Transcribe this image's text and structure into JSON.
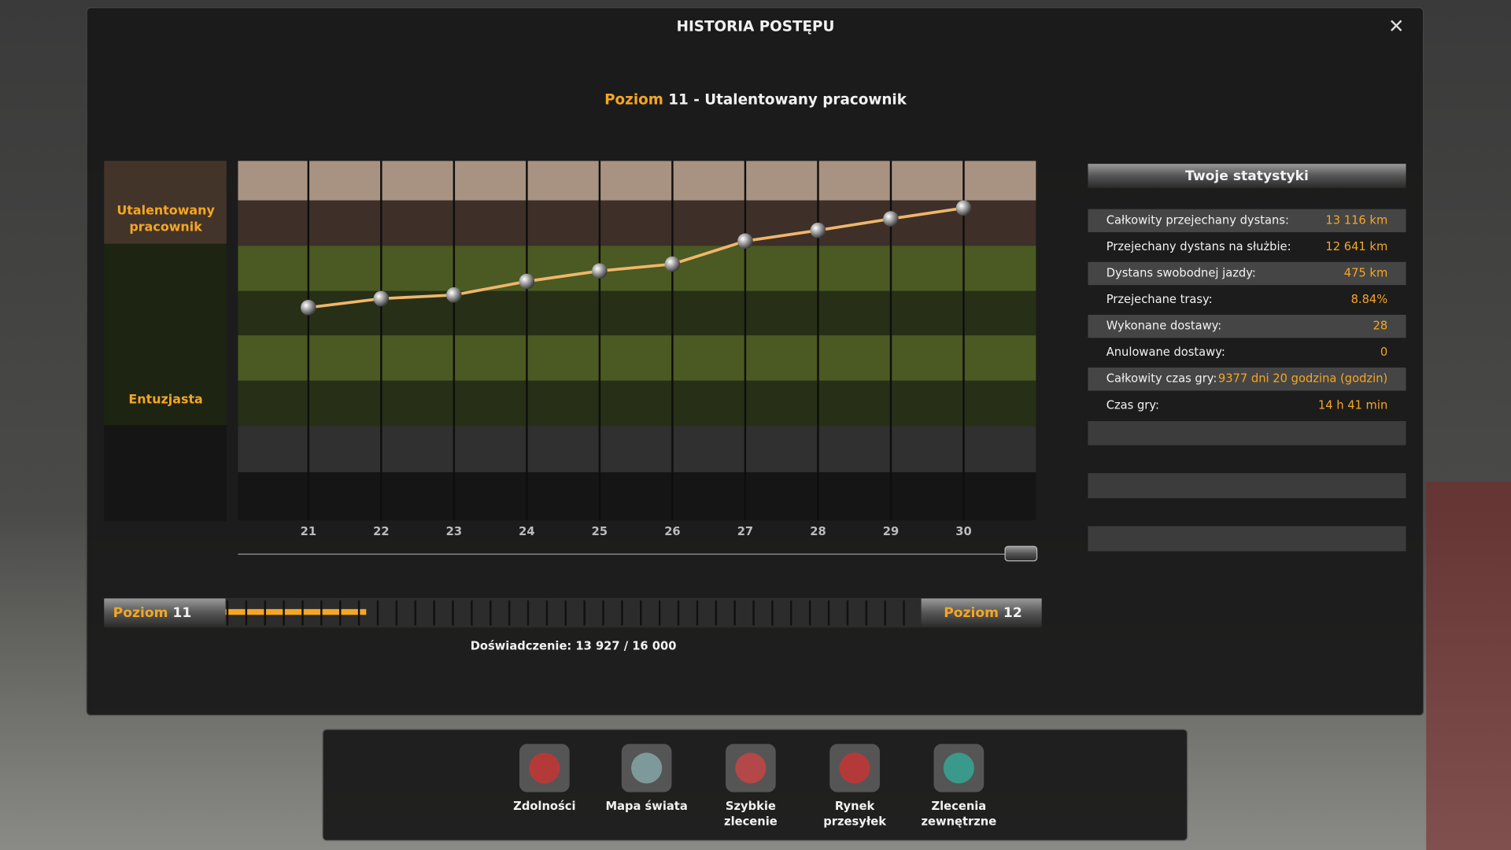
{
  "window": {
    "title": "HISTORIA POSTĘPU",
    "close": "✕"
  },
  "heading": {
    "prefix": "Poziom",
    "rest": "11 - Utalentowany pracownik"
  },
  "chart_data": {
    "type": "line",
    "categories": [
      "21",
      "22",
      "23",
      "24",
      "25",
      "26",
      "27",
      "28",
      "29",
      "30"
    ],
    "values": [
      59.2,
      61.7,
      62.7,
      66.5,
      69.4,
      71.3,
      77.7,
      80.7,
      83.9,
      86.9
    ],
    "ylim": [
      0,
      100
    ],
    "color": "#f0b66a",
    "bands": [
      [
        "Utalentowany",
        "pracownik"
      ],
      [
        "Entuzjasta"
      ]
    ]
  },
  "stats": {
    "title": "Twoje statystyki",
    "rows": [
      {
        "label": "Całkowity przejechany dystans:",
        "value": "13 116 km"
      },
      {
        "label": "Przejechany dystans na służbie:",
        "value": "12 641 km"
      },
      {
        "label": "Dystans swobodnej jazdy:",
        "value": "475 km"
      },
      {
        "label": "Przejechane trasy:",
        "value": "8.84%"
      },
      {
        "label": "Wykonane dostawy:",
        "value": "28"
      },
      {
        "label": "Anulowane dostawy:",
        "value": "0"
      },
      {
        "label": "Całkowity czas gry:",
        "value": "9377 dni 20 godzina (godzin)"
      },
      {
        "label": "Czas gry:",
        "value": "14 h 41 min"
      }
    ]
  },
  "progress": {
    "left": {
      "label": "Poziom",
      "level": "11"
    },
    "right": {
      "label": "Poziom",
      "level": "12"
    },
    "experience": "Doświadczenie: 13 927 / 16 000"
  },
  "toolbar": [
    {
      "label": [
        "Zdolności"
      ]
    },
    {
      "label": [
        "Mapa świata"
      ]
    },
    {
      "label": [
        "Szybkie",
        "zlecenie"
      ]
    },
    {
      "label": [
        "Rynek",
        "przesyłek"
      ]
    },
    {
      "label": [
        "Zlecenia",
        "zewnętrzne"
      ]
    }
  ]
}
